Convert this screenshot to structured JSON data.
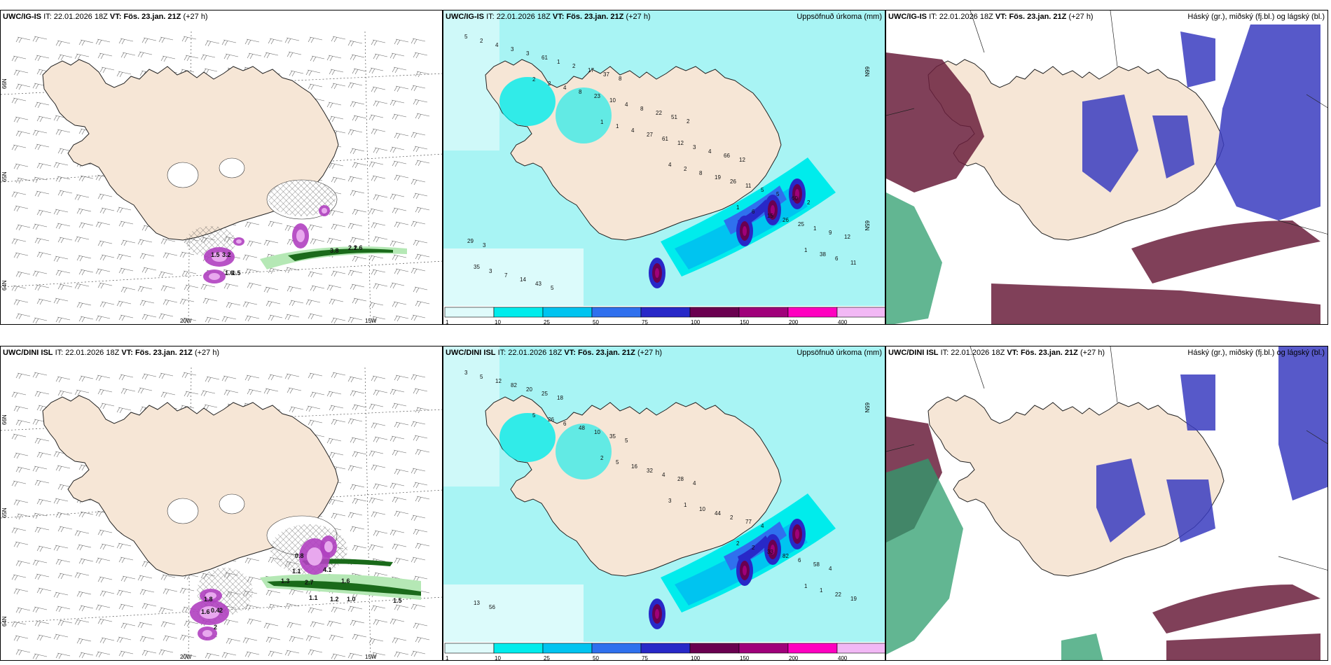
{
  "panels": [
    {
      "model": "UWC/IG-IS",
      "it_label": "IT:",
      "init": "22.01.2026 18Z",
      "vt_label": "VT:",
      "valid": "Fös. 23.jan. 21Z",
      "lead": "(+27 h)",
      "right_title": "",
      "type": "wind",
      "lat_labels": [
        "66N",
        "65N",
        "64N"
      ],
      "lon_labels": [
        "20W",
        "15W"
      ],
      "values": [
        "3.2",
        "1.5",
        "3.8",
        "2.1",
        "1.6",
        "2.6",
        "1.5"
      ]
    },
    {
      "model": "UWC/IG-IS",
      "it_label": "IT:",
      "init": "22.01.2026 18Z",
      "vt_label": "VT:",
      "valid": "Fös. 23.jan. 21Z",
      "lead": "(+27 h)",
      "right_title": "Uppsöfnuð úrkoma (mm)",
      "type": "precip",
      "lat_labels": [
        "66N",
        "65N"
      ],
      "values": [
        "5",
        "2",
        "1",
        "4",
        "1",
        "1",
        "2",
        "2",
        "1",
        "2",
        "6",
        "38",
        "4",
        "4",
        "4",
        "8",
        "15",
        "6",
        "3",
        "8",
        "27",
        "19",
        "26",
        "11",
        "3",
        "23",
        "61",
        "26",
        "25",
        "35",
        "61",
        "10",
        "12",
        "11",
        "1",
        "3",
        "1",
        "4",
        "3",
        "5",
        "9",
        "7",
        "2",
        "8",
        "4",
        "5",
        "12",
        "14",
        "17",
        "22",
        "66",
        "60",
        "29",
        "43",
        "37",
        "51",
        "12",
        "2",
        "3",
        "5",
        "8",
        "2"
      ]
    },
    {
      "model": "UWC/IG-IS",
      "it_label": "IT:",
      "init": "22.01.2026 18Z",
      "vt_label": "VT:",
      "valid": "Fös. 23.jan. 21Z",
      "lead": "(+27 h)",
      "right_title": "Háský (gr.), miðský (fj.bl.) og lágský (bl.)",
      "type": "cloud"
    },
    {
      "model": "UWC/DINI ISL",
      "it_label": "IT:",
      "init": "22.01.2026 18Z",
      "vt_label": "VT:",
      "valid": "Fös. 23.jan. 21Z",
      "lead": "(+27 h)",
      "right_title": "",
      "type": "wind",
      "lat_labels": [
        "66N",
        "65N",
        "64N"
      ],
      "lon_labels": [
        "20W",
        "15W"
      ],
      "values": [
        "0.4",
        "1.8",
        "2",
        "1.6",
        "2",
        "0.8",
        "1.1",
        "4.1",
        "1.3",
        "2.7",
        "1.6",
        "1.1",
        "1.2",
        "1.0",
        "1.5"
      ]
    },
    {
      "model": "UWC/DINI ISL",
      "it_label": "IT:",
      "init": "22.01.2026 18Z",
      "vt_label": "VT:",
      "valid": "Fös. 23.jan. 21Z",
      "lead": "(+27 h)",
      "right_title": "Uppsöfnuð úrkoma (mm)",
      "type": "precip",
      "lat_labels": [
        "65N"
      ],
      "values": [
        "3",
        "5",
        "2",
        "3",
        "2",
        "1",
        "5",
        "26",
        "5",
        "1",
        "2",
        "1",
        "12",
        "6",
        "16",
        "10",
        "33",
        "22",
        "82",
        "48",
        "32",
        "44",
        "82",
        "19",
        "20",
        "10",
        "4",
        "2",
        "6",
        "13",
        "25",
        "35",
        "28",
        "77",
        "58",
        "56",
        "18",
        "5",
        "4",
        "4",
        "4"
      ]
    },
    {
      "model": "UWC/DINI ISL",
      "it_label": "IT:",
      "init": "22.01.2026 18Z",
      "vt_label": "VT:",
      "valid": "Fös. 23.jan. 21Z",
      "lead": "(+27 h)",
      "right_title": "Háský (gr.), miðský (fj.bl.) og lágský (bl.)",
      "type": "cloud"
    }
  ],
  "colorbar": {
    "labels": [
      "1",
      "10",
      "25",
      "50",
      "75",
      "100",
      "150",
      "200",
      "400"
    ],
    "colors": [
      "#e0fbfb",
      "#00ecec",
      "#00c4f0",
      "#2f70ee",
      "#2828c8",
      "#6a0050",
      "#a0007a",
      "#ff00c0",
      "#f2b8f5"
    ]
  },
  "colors": {
    "land": "#f6e6d6",
    "sea_precip": "#a8f4f4",
    "cloud_high": "#6a1e3c",
    "cloud_mid": "#3a3cc0",
    "cloud_low": "#2d9e6e",
    "wind_green": "#1a6a1a",
    "wind_magenta": "#b040c0"
  }
}
